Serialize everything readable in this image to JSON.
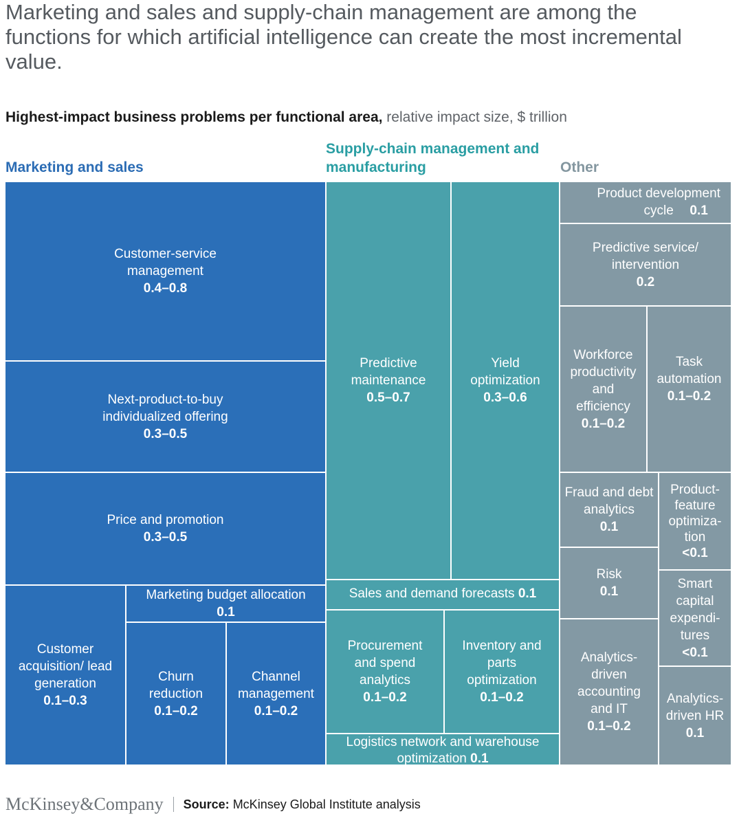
{
  "headline": "Marketing and sales and supply-chain management are among the functions for which artificial intelligence can create the most incremental value.",
  "subtitle": {
    "bold": "Highest-impact business problems per functional area,",
    "light": " relative impact size, $ trillion"
  },
  "groups": {
    "marketing": "Marketing and sales",
    "supply": "Supply-chain management and manufacturing",
    "other": "Other"
  },
  "colors": {
    "marketing": "#2b6fb8",
    "supply": "#4aa1ab",
    "other": "#8399a4"
  },
  "chart_data": {
    "type": "treemap",
    "title": "Highest-impact business problems per functional area",
    "units": "relative impact size, $ trillion",
    "groups": [
      {
        "name": "Marketing and sales",
        "items": [
          {
            "name": "Customer-service management",
            "value": "0.4–0.8"
          },
          {
            "name": "Next-product-to-buy individualized offering",
            "value": "0.3–0.5"
          },
          {
            "name": "Price and promotion",
            "value": "0.3–0.5"
          },
          {
            "name": "Customer acquisition/ lead generation",
            "value": "0.1–0.3"
          },
          {
            "name": "Marketing budget allocation",
            "value": "0.1"
          },
          {
            "name": "Churn reduction",
            "value": "0.1–0.2"
          },
          {
            "name": "Channel management",
            "value": "0.1–0.2"
          }
        ]
      },
      {
        "name": "Supply-chain management and manufacturing",
        "items": [
          {
            "name": "Predictive maintenance",
            "value": "0.5–0.7"
          },
          {
            "name": "Yield optimization",
            "value": "0.3–0.6"
          },
          {
            "name": "Sales and demand forecasts",
            "value": "0.1"
          },
          {
            "name": "Procurement and spend analytics",
            "value": "0.1–0.2"
          },
          {
            "name": "Inventory and parts optimization",
            "value": "0.1–0.2"
          },
          {
            "name": "Logistics network and warehouse optimization",
            "value": "0.1"
          }
        ]
      },
      {
        "name": "Other",
        "items": [
          {
            "name": "Product development cycle",
            "value": "0.1"
          },
          {
            "name": "Predictive service/ intervention",
            "value": "0.2"
          },
          {
            "name": "Workforce productivity and efficiency",
            "value": "0.1–0.2"
          },
          {
            "name": "Task automation",
            "value": "0.1–0.2"
          },
          {
            "name": "Fraud and debt analytics",
            "value": "0.1"
          },
          {
            "name": "Product-feature optimiza-tion",
            "value": "<0.1"
          },
          {
            "name": "Risk",
            "value": "0.1"
          },
          {
            "name": "Smart capital expendi-tures",
            "value": "<0.1"
          },
          {
            "name": "Analytics-driven accounting and IT",
            "value": "0.1–0.2"
          },
          {
            "name": "Analytics-driven HR",
            "value": "0.1"
          }
        ]
      }
    ]
  },
  "footer": {
    "logo": "McKinsey&Company",
    "source_label": "Source:",
    "source_text": " McKinsey Global Institute analysis"
  }
}
